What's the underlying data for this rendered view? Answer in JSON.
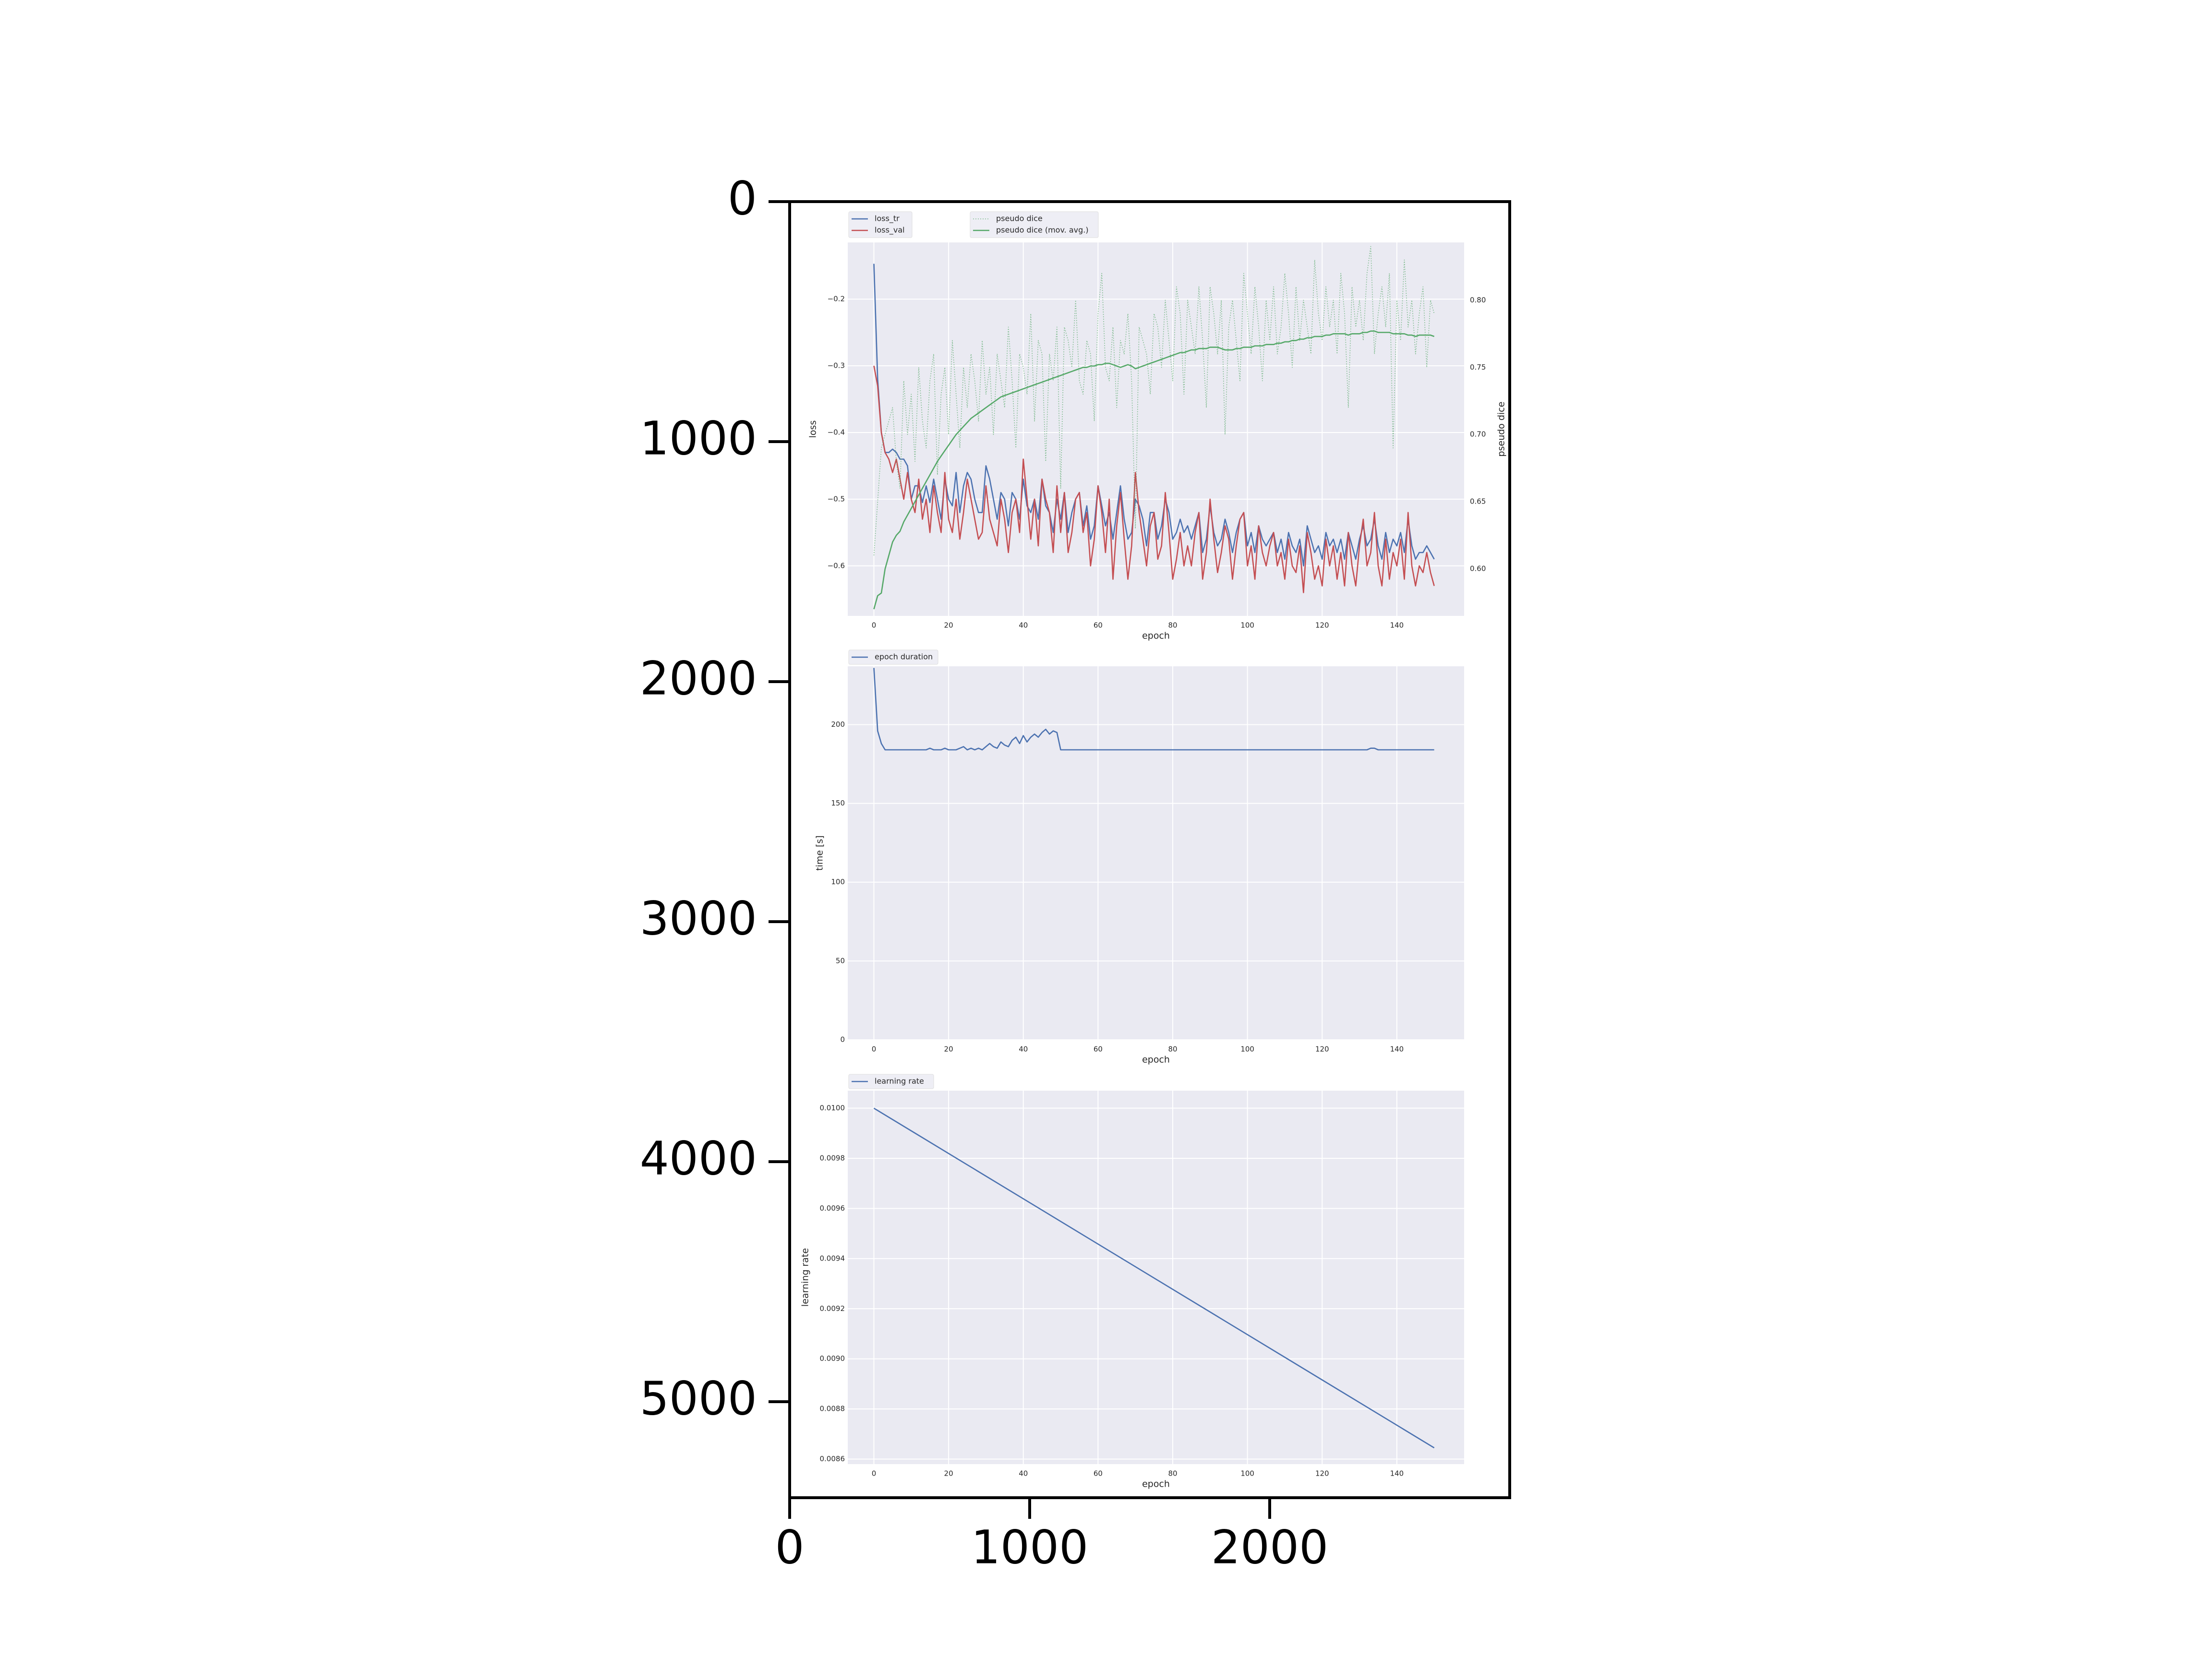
{
  "outer_axes": {
    "x_ticks": [
      "0",
      "1000",
      "2000"
    ],
    "y_ticks": [
      "0",
      "1000",
      "2000",
      "3000",
      "4000",
      "5000"
    ],
    "x_tick_values": [
      0,
      1000,
      2000
    ],
    "y_tick_values": [
      0,
      1000,
      2000,
      3000,
      4000,
      5000
    ],
    "xlim": [
      0,
      3000
    ],
    "ylim": [
      5400,
      0
    ],
    "frame_color": "#000000"
  },
  "colors": {
    "panel_bg": "#eaeaf2",
    "blue": "#4c72b0",
    "red": "#c44e52",
    "green": "#55a868",
    "tick_text": "#262626"
  },
  "chart_data": [
    {
      "type": "line",
      "xlabel": "epoch",
      "ylabel": "loss",
      "y2label": "pseudo dice",
      "xlim": [
        -7,
        158
      ],
      "ylim": [
        -0.675,
        -0.115
      ],
      "y2lim": [
        0.565,
        0.843
      ],
      "x_ticks": [
        0,
        20,
        40,
        60,
        80,
        100,
        120,
        140
      ],
      "y_ticks": [
        -0.6,
        -0.5,
        -0.4,
        -0.3,
        -0.2
      ],
      "y_tick_labels": [
        "−0.6",
        "−0.5",
        "−0.4",
        "−0.3",
        "−0.2"
      ],
      "y2_ticks": [
        0.6,
        0.65,
        0.7,
        0.75,
        0.8
      ],
      "y2_tick_labels": [
        "0.60",
        "0.65",
        "0.70",
        "0.75",
        "0.80"
      ],
      "legend_left": [
        "loss_tr",
        "loss_val"
      ],
      "legend_right": [
        "pseudo dice",
        "pseudo dice (mov. avg.)"
      ],
      "grid": true,
      "series": [
        {
          "name": "loss_tr",
          "axis": "left",
          "color": "#4c72b0",
          "style": "solid",
          "x_start": 0,
          "values": [
            -0.147,
            -0.32,
            -0.4,
            -0.43,
            -0.43,
            -0.425,
            -0.43,
            -0.44,
            -0.44,
            -0.45,
            -0.5,
            -0.48,
            -0.48,
            -0.505,
            -0.48,
            -0.505,
            -0.47,
            -0.5,
            -0.53,
            -0.47,
            -0.5,
            -0.51,
            -0.46,
            -0.52,
            -0.48,
            -0.46,
            -0.47,
            -0.5,
            -0.52,
            -0.52,
            -0.45,
            -0.47,
            -0.5,
            -0.53,
            -0.49,
            -0.5,
            -0.54,
            -0.49,
            -0.5,
            -0.53,
            -0.47,
            -0.51,
            -0.52,
            -0.5,
            -0.53,
            -0.47,
            -0.51,
            -0.52,
            -0.55,
            -0.5,
            -0.53,
            -0.49,
            -0.55,
            -0.52,
            -0.5,
            -0.49,
            -0.54,
            -0.51,
            -0.56,
            -0.54,
            -0.48,
            -0.51,
            -0.54,
            -0.52,
            -0.56,
            -0.52,
            -0.48,
            -0.53,
            -0.56,
            -0.55,
            -0.5,
            -0.51,
            -0.53,
            -0.57,
            -0.52,
            -0.52,
            -0.56,
            -0.54,
            -0.5,
            -0.52,
            -0.56,
            -0.55,
            -0.53,
            -0.55,
            -0.54,
            -0.56,
            -0.54,
            -0.52,
            -0.58,
            -0.56,
            -0.51,
            -0.55,
            -0.57,
            -0.56,
            -0.53,
            -0.55,
            -0.58,
            -0.55,
            -0.53,
            -0.52,
            -0.57,
            -0.55,
            -0.58,
            -0.54,
            -0.56,
            -0.57,
            -0.56,
            -0.55,
            -0.58,
            -0.56,
            -0.59,
            -0.55,
            -0.57,
            -0.58,
            -0.56,
            -0.6,
            -0.54,
            -0.56,
            -0.58,
            -0.57,
            -0.59,
            -0.55,
            -0.57,
            -0.56,
            -0.58,
            -0.56,
            -0.59,
            -0.55,
            -0.57,
            -0.59,
            -0.56,
            -0.54,
            -0.57,
            -0.56,
            -0.53,
            -0.57,
            -0.59,
            -0.55,
            -0.58,
            -0.56,
            -0.57,
            -0.55,
            -0.58,
            -0.53,
            -0.57,
            -0.59,
            -0.58,
            -0.58,
            -0.57,
            -0.58,
            -0.59
          ]
        },
        {
          "name": "loss_val",
          "axis": "left",
          "color": "#c44e52",
          "style": "solid",
          "x_start": 0,
          "values": [
            -0.3,
            -0.33,
            -0.4,
            -0.43,
            -0.44,
            -0.46,
            -0.44,
            -0.47,
            -0.5,
            -0.46,
            -0.5,
            -0.52,
            -0.47,
            -0.53,
            -0.5,
            -0.55,
            -0.48,
            -0.52,
            -0.55,
            -0.46,
            -0.53,
            -0.55,
            -0.5,
            -0.56,
            -0.52,
            -0.47,
            -0.5,
            -0.53,
            -0.56,
            -0.55,
            -0.48,
            -0.53,
            -0.55,
            -0.57,
            -0.5,
            -0.53,
            -0.58,
            -0.52,
            -0.5,
            -0.55,
            -0.44,
            -0.5,
            -0.56,
            -0.5,
            -0.57,
            -0.47,
            -0.5,
            -0.52,
            -0.58,
            -0.48,
            -0.55,
            -0.49,
            -0.58,
            -0.55,
            -0.5,
            -0.49,
            -0.55,
            -0.52,
            -0.6,
            -0.56,
            -0.48,
            -0.52,
            -0.58,
            -0.5,
            -0.62,
            -0.54,
            -0.49,
            -0.56,
            -0.62,
            -0.57,
            -0.46,
            -0.52,
            -0.56,
            -0.6,
            -0.54,
            -0.52,
            -0.59,
            -0.57,
            -0.49,
            -0.55,
            -0.62,
            -0.59,
            -0.55,
            -0.6,
            -0.57,
            -0.6,
            -0.55,
            -0.52,
            -0.62,
            -0.58,
            -0.5,
            -0.56,
            -0.61,
            -0.58,
            -0.54,
            -0.56,
            -0.62,
            -0.57,
            -0.53,
            -0.52,
            -0.6,
            -0.57,
            -0.62,
            -0.54,
            -0.58,
            -0.6,
            -0.57,
            -0.55,
            -0.6,
            -0.58,
            -0.62,
            -0.56,
            -0.6,
            -0.61,
            -0.57,
            -0.64,
            -0.55,
            -0.58,
            -0.62,
            -0.6,
            -0.63,
            -0.56,
            -0.6,
            -0.57,
            -0.62,
            -0.58,
            -0.63,
            -0.55,
            -0.6,
            -0.63,
            -0.57,
            -0.53,
            -0.6,
            -0.58,
            -0.52,
            -0.6,
            -0.63,
            -0.56,
            -0.62,
            -0.58,
            -0.6,
            -0.56,
            -0.62,
            -0.52,
            -0.6,
            -0.63,
            -0.6,
            -0.61,
            -0.58,
            -0.61,
            -0.63
          ]
        },
        {
          "name": "pseudo dice",
          "axis": "right",
          "color": "#55a868",
          "style": "dotted",
          "x_start": 0,
          "values": [
            0.61,
            0.65,
            0.69,
            0.7,
            0.71,
            0.72,
            0.68,
            0.66,
            0.74,
            0.7,
            0.73,
            0.68,
            0.75,
            0.71,
            0.69,
            0.74,
            0.76,
            0.67,
            0.73,
            0.75,
            0.7,
            0.77,
            0.73,
            0.69,
            0.75,
            0.72,
            0.76,
            0.74,
            0.71,
            0.77,
            0.73,
            0.75,
            0.7,
            0.76,
            0.74,
            0.72,
            0.78,
            0.74,
            0.69,
            0.76,
            0.75,
            0.73,
            0.79,
            0.71,
            0.77,
            0.76,
            0.68,
            0.76,
            0.74,
            0.78,
            0.66,
            0.78,
            0.77,
            0.75,
            0.8,
            0.74,
            0.73,
            0.77,
            0.76,
            0.71,
            0.79,
            0.82,
            0.75,
            0.74,
            0.78,
            0.72,
            0.77,
            0.76,
            0.79,
            0.74,
            0.63,
            0.78,
            0.77,
            0.76,
            0.73,
            0.79,
            0.78,
            0.75,
            0.8,
            0.77,
            0.74,
            0.81,
            0.79,
            0.73,
            0.8,
            0.78,
            0.76,
            0.81,
            0.77,
            0.72,
            0.81,
            0.79,
            0.76,
            0.8,
            0.7,
            0.78,
            0.8,
            0.77,
            0.74,
            0.82,
            0.79,
            0.76,
            0.81,
            0.78,
            0.74,
            0.8,
            0.77,
            0.81,
            0.76,
            0.78,
            0.82,
            0.79,
            0.75,
            0.81,
            0.77,
            0.8,
            0.78,
            0.76,
            0.83,
            0.79,
            0.77,
            0.81,
            0.78,
            0.8,
            0.76,
            0.82,
            0.79,
            0.72,
            0.81,
            0.78,
            0.8,
            0.77,
            0.82,
            0.84,
            0.76,
            0.79,
            0.81,
            0.78,
            0.82,
            0.69,
            0.8,
            0.77,
            0.83,
            0.78,
            0.8,
            0.76,
            0.79,
            0.81,
            0.75,
            0.8,
            0.79
          ]
        },
        {
          "name": "pseudo dice (mov. avg.)",
          "axis": "right",
          "color": "#55a868",
          "style": "solid",
          "x_start": 0,
          "values": [
            0.57,
            0.58,
            0.582,
            0.6,
            0.61,
            0.62,
            0.625,
            0.628,
            0.635,
            0.64,
            0.645,
            0.65,
            0.655,
            0.66,
            0.665,
            0.67,
            0.675,
            0.68,
            0.684,
            0.688,
            0.692,
            0.696,
            0.7,
            0.703,
            0.706,
            0.709,
            0.712,
            0.714,
            0.716,
            0.718,
            0.72,
            0.722,
            0.724,
            0.726,
            0.728,
            0.729,
            0.73,
            0.731,
            0.732,
            0.733,
            0.734,
            0.735,
            0.736,
            0.737,
            0.738,
            0.739,
            0.74,
            0.741,
            0.742,
            0.743,
            0.744,
            0.745,
            0.746,
            0.747,
            0.748,
            0.749,
            0.75,
            0.75,
            0.751,
            0.751,
            0.752,
            0.752,
            0.753,
            0.753,
            0.752,
            0.751,
            0.75,
            0.751,
            0.752,
            0.751,
            0.749,
            0.75,
            0.751,
            0.752,
            0.753,
            0.754,
            0.755,
            0.756,
            0.757,
            0.758,
            0.759,
            0.76,
            0.761,
            0.761,
            0.762,
            0.763,
            0.763,
            0.764,
            0.764,
            0.764,
            0.765,
            0.765,
            0.765,
            0.764,
            0.763,
            0.763,
            0.763,
            0.764,
            0.764,
            0.765,
            0.765,
            0.765,
            0.766,
            0.766,
            0.766,
            0.767,
            0.767,
            0.767,
            0.768,
            0.768,
            0.769,
            0.769,
            0.77,
            0.77,
            0.771,
            0.771,
            0.772,
            0.772,
            0.773,
            0.773,
            0.773,
            0.774,
            0.774,
            0.775,
            0.775,
            0.775,
            0.775,
            0.774,
            0.775,
            0.775,
            0.775,
            0.776,
            0.776,
            0.777,
            0.777,
            0.776,
            0.776,
            0.776,
            0.776,
            0.775,
            0.775,
            0.775,
            0.775,
            0.774,
            0.774,
            0.773,
            0.774,
            0.774,
            0.774,
            0.774,
            0.773
          ]
        }
      ]
    },
    {
      "type": "line",
      "xlabel": "epoch",
      "ylabel": "time [s]",
      "xlim": [
        -7,
        158
      ],
      "ylim": [
        0,
        237
      ],
      "x_ticks": [
        0,
        20,
        40,
        60,
        80,
        100,
        120,
        140
      ],
      "y_ticks": [
        0,
        50,
        100,
        150,
        200
      ],
      "y_tick_labels": [
        "0",
        "50",
        "100",
        "150",
        "200"
      ],
      "legend": [
        "epoch duration"
      ],
      "grid": true,
      "series": [
        {
          "name": "epoch duration",
          "color": "#4c72b0",
          "style": "solid",
          "x_start": 0,
          "values": [
            236,
            196,
            188,
            184,
            184,
            184,
            184,
            184,
            184,
            184,
            184,
            184,
            184,
            184,
            184,
            185,
            184,
            184,
            184,
            185,
            184,
            184,
            184,
            185,
            186,
            184,
            185,
            184,
            185,
            184,
            186,
            188,
            186,
            185,
            189,
            187,
            186,
            190,
            192,
            188,
            193,
            189,
            192,
            194,
            192,
            195,
            197,
            194,
            196,
            195,
            184,
            184,
            184,
            184,
            184,
            184,
            184,
            184,
            184,
            184,
            184,
            184,
            184,
            184,
            184,
            184,
            184,
            184,
            184,
            184,
            184,
            184,
            184,
            184,
            184,
            184,
            184,
            184,
            184,
            184,
            184,
            184,
            184,
            184,
            184,
            184,
            184,
            184,
            184,
            184,
            184,
            184,
            184,
            184,
            184,
            184,
            184,
            184,
            184,
            184,
            184,
            184,
            184,
            184,
            184,
            184,
            184,
            184,
            184,
            184,
            184,
            184,
            184,
            184,
            184,
            184,
            184,
            184,
            184,
            184,
            184,
            184,
            184,
            184,
            184,
            184,
            184,
            184,
            184,
            184,
            184,
            184,
            184,
            185,
            185,
            184,
            184,
            184,
            184,
            184,
            184,
            184,
            184,
            184,
            184,
            184,
            184,
            184,
            184,
            184,
            184
          ]
        }
      ]
    },
    {
      "type": "line",
      "xlabel": "epoch",
      "ylabel": "learning rate",
      "xlim": [
        -7,
        158
      ],
      "ylim": [
        0.00858,
        0.01007
      ],
      "x_ticks": [
        0,
        20,
        40,
        60,
        80,
        100,
        120,
        140
      ],
      "y_ticks": [
        0.0086,
        0.0088,
        0.009,
        0.0092,
        0.0094,
        0.0096,
        0.0098,
        0.01
      ],
      "y_tick_labels": [
        "0.0086",
        "0.0088",
        "0.0090",
        "0.0092",
        "0.0094",
        "0.0096",
        "0.0098",
        "0.0100"
      ],
      "legend": [
        "learning rate"
      ],
      "grid": true,
      "series": [
        {
          "name": "learning rate",
          "color": "#4c72b0",
          "style": "solid",
          "x": [
            0,
            150
          ],
          "values": [
            0.01,
            0.008645
          ]
        }
      ]
    }
  ]
}
